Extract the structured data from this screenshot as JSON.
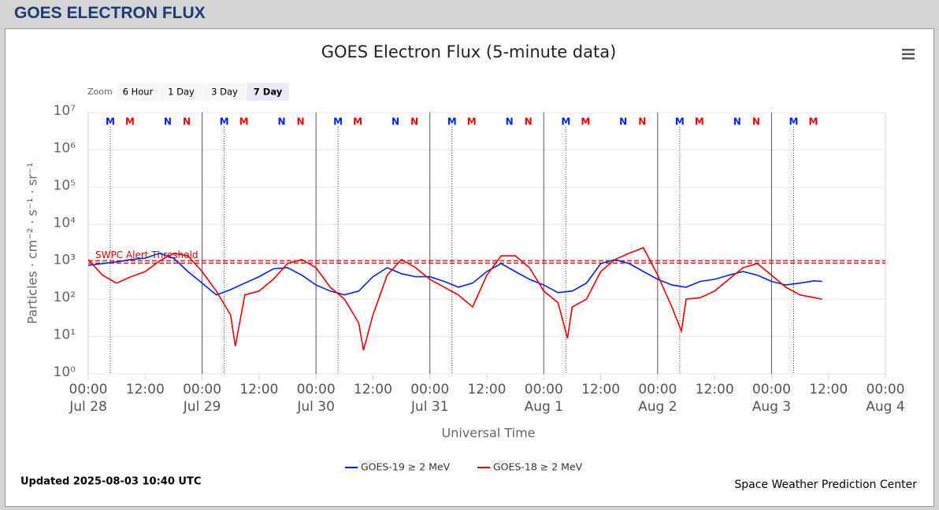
{
  "header": {
    "title": "GOES ELECTRON FLUX"
  },
  "zoom": {
    "label": "Zoom",
    "buttons": [
      "6 Hour",
      "1 Day",
      "3 Day",
      "7 Day"
    ],
    "selected": 3
  },
  "chart_data": {
    "type": "line",
    "title": "GOES Electron Flux (5-minute data)",
    "xlabel": "Universal Time",
    "ylabel": "Particles · cm⁻² · s⁻¹ · sr⁻¹",
    "log_y": true,
    "grid": true,
    "xlim": [
      0,
      168
    ],
    "xticks": [
      {
        "value": 0,
        "label": "00:00\nJul 28"
      },
      {
        "value": 12,
        "label": "12:00"
      },
      {
        "value": 24,
        "label": "00:00\nJul 29"
      },
      {
        "value": 36,
        "label": "12:00"
      },
      {
        "value": 48,
        "label": "00:00\nJul 30"
      },
      {
        "value": 60,
        "label": "12:00"
      },
      {
        "value": 72,
        "label": "00:00\nJul 31"
      },
      {
        "value": 84,
        "label": "12:00"
      },
      {
        "value": 96,
        "label": "00:00\nAug 1"
      },
      {
        "value": 108,
        "label": "12:00"
      },
      {
        "value": 120,
        "label": "00:00\nAug 2"
      },
      {
        "value": 132,
        "label": "12:00"
      },
      {
        "value": 144,
        "label": "00:00\nAug 3"
      },
      {
        "value": 156,
        "label": "12:00"
      },
      {
        "value": 168,
        "label": "00:00\nAug 4"
      }
    ],
    "ylim": [
      1,
      10000000
    ],
    "yticks": [
      {
        "value": 1,
        "label": "10⁰"
      },
      {
        "value": 10,
        "label": "10¹"
      },
      {
        "value": 100,
        "label": "10²"
      },
      {
        "value": 1000,
        "label": "10³"
      },
      {
        "value": 10000,
        "label": "10⁴"
      },
      {
        "value": 100000,
        "label": "10⁵"
      },
      {
        "value": 1000000,
        "label": "10⁶"
      },
      {
        "value": 10000000,
        "label": "10⁷"
      }
    ],
    "threshold": {
      "value": 1000,
      "label": "SWPC Alert Threshold",
      "color": "#dd0000"
    },
    "series": [
      {
        "name": "GOES-19 ≥ 2 MeV",
        "color": "#0022ee",
        "x": [
          0,
          3,
          6,
          9,
          12,
          15,
          18,
          21,
          24,
          27,
          30,
          33,
          36,
          39,
          42,
          45,
          48,
          51,
          54,
          57,
          60,
          63,
          66,
          69,
          72,
          75,
          78,
          81,
          84,
          87,
          90,
          93,
          96,
          99,
          102,
          105,
          108,
          111,
          114,
          117,
          120,
          123,
          126,
          129,
          132,
          135,
          138,
          141,
          144,
          147,
          150,
          153,
          154.67
        ],
        "values": [
          810,
          900,
          1000,
          1150,
          1260,
          1700,
          1260,
          550,
          270,
          130,
          180,
          270,
          400,
          650,
          700,
          440,
          240,
          165,
          130,
          165,
          400,
          700,
          480,
          400,
          400,
          300,
          210,
          270,
          550,
          900,
          550,
          340,
          240,
          150,
          165,
          270,
          900,
          1150,
          900,
          550,
          340,
          240,
          210,
          300,
          340,
          440,
          550,
          440,
          300,
          240,
          270,
          310,
          300
        ]
      },
      {
        "name": "GOES-18 ≥ 2 MeV",
        "color": "#ee0000",
        "x": [
          0,
          3,
          6,
          9,
          12,
          15,
          18,
          21,
          24,
          27,
          30,
          31,
          33,
          36,
          39,
          42,
          45,
          48,
          51,
          54,
          57,
          58,
          60,
          63,
          66,
          69,
          72,
          75,
          78,
          81,
          84,
          87,
          90,
          93,
          96,
          99,
          101,
          102,
          105,
          108,
          111,
          114,
          117,
          120,
          123,
          125,
          126,
          129,
          132,
          135,
          138,
          141,
          144,
          147,
          150,
          153,
          154.67
        ],
        "values": [
          1150,
          440,
          270,
          400,
          550,
          1050,
          1700,
          1450,
          550,
          165,
          38,
          5.5,
          130,
          165,
          340,
          900,
          1150,
          700,
          210,
          100,
          23,
          4.3,
          38,
          440,
          1150,
          700,
          340,
          210,
          130,
          62,
          440,
          1450,
          1450,
          700,
          165,
          80,
          9,
          62,
          100,
          550,
          1150,
          1700,
          2400,
          440,
          62,
          14,
          100,
          110,
          165,
          340,
          700,
          900,
          440,
          210,
          130,
          110,
          100
        ]
      }
    ],
    "markers": [
      {
        "label": "M",
        "color": "#0022ee",
        "line": "dotted",
        "x": [
          4.65,
          28.65,
          52.65,
          76.65,
          100.65,
          124.65,
          148.65
        ]
      },
      {
        "label": "M",
        "color": "#ee0000",
        "x": [
          8.8,
          32.8,
          56.8,
          80.8,
          104.8,
          128.8,
          152.8
        ]
      },
      {
        "label": "N",
        "color": "#0022ee",
        "x": [
          16.75,
          40.75,
          64.75,
          88.75,
          112.75,
          136.75
        ]
      },
      {
        "label": "N",
        "color": "#ee0000",
        "x": [
          20.75,
          44.75,
          68.75,
          92.75,
          116.75,
          140.75
        ]
      }
    ]
  },
  "footer": {
    "updated": "Updated 2025-08-03 10:40 UTC",
    "credit": "Space Weather Prediction Center"
  }
}
